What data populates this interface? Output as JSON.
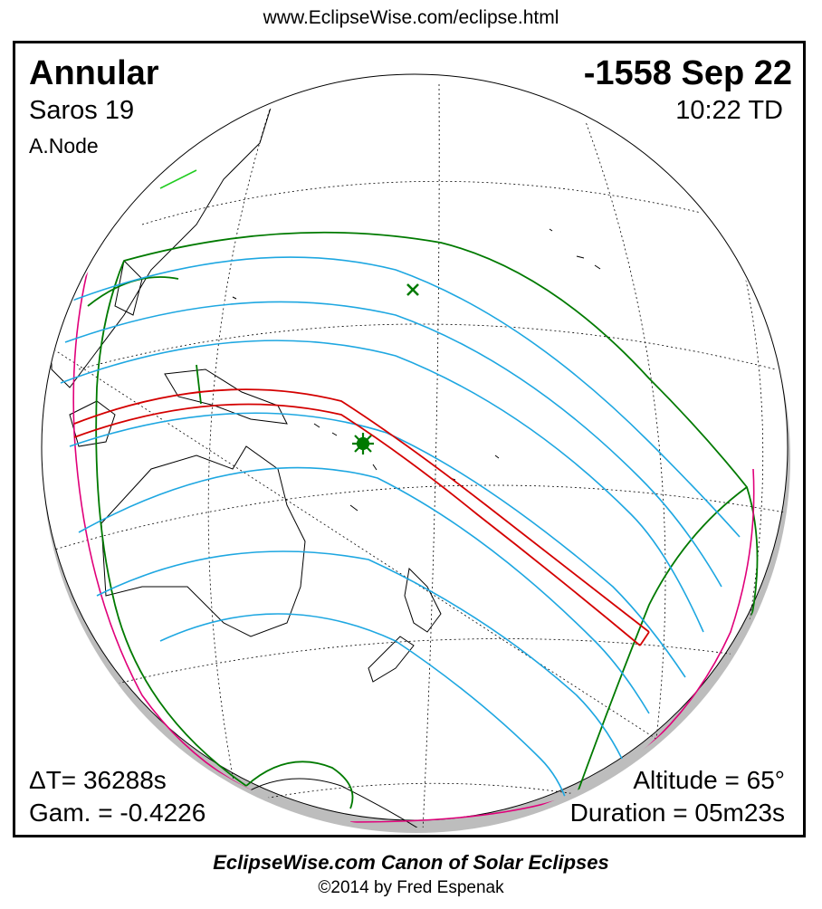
{
  "header": {
    "url": "www.EclipseWise.com/eclipse.html"
  },
  "eclipse": {
    "type": "Annular",
    "date": "-1558 Sep 22",
    "saros": "Saros  19",
    "time": "10:22 TD",
    "node": "A.Node",
    "delta_t": "ΔT=  36288s",
    "gamma": "Gam. = -0.4226",
    "altitude": "Altitude = 65°",
    "duration": "Duration = 05m23s"
  },
  "footer": {
    "title": "EclipseWise.com Canon of Solar Eclipses",
    "copyright": "©2014 by Fred Espenak"
  },
  "colors": {
    "central_path": "#d40000",
    "partial_lines": "#1ea7e1",
    "penumbra_limits": "#007a00",
    "rise_set_curves": "#e0007a",
    "globe_shadow": "#bdbdbd",
    "graticule": "#000000"
  },
  "icons": {
    "greatest_eclipse": "green-starburst-marker",
    "subsolar_point": "green-x-marker"
  }
}
